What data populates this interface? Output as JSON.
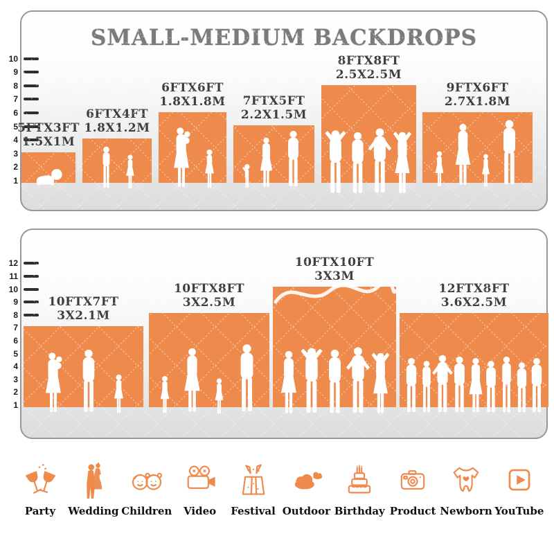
{
  "accent_color": "#ED8A4C",
  "silhouette_color": "#FFFFFF",
  "title": "SMALL-MEDIUM BACKDROPS",
  "panels": [
    {
      "id": "top",
      "ruler_units": 10,
      "backdrops": [
        {
          "label_ft": "5FTX3FT",
          "label_m": "1.5X1M",
          "width_ft": 5,
          "height_ft": 3,
          "figures": [
            "baby"
          ]
        },
        {
          "label_ft": "6FTX4FT",
          "label_m": "1.8X1.2M",
          "width_ft": 6,
          "height_ft": 4,
          "figures": [
            "boy",
            "girl"
          ]
        },
        {
          "label_ft": "6FTX6FT",
          "label_m": "1.8X1.8M",
          "width_ft": 6,
          "height_ft": 6,
          "figures": [
            "woman_baby",
            "girl"
          ]
        },
        {
          "label_ft": "7FTX5FT",
          "label_m": "2.2X1.5M",
          "width_ft": 7,
          "height_ft": 5,
          "figures": [
            "toddler",
            "woman",
            "man"
          ]
        },
        {
          "label_ft": "8FTX8FT",
          "label_m": "2.5X2.5M",
          "width_ft": 8,
          "height_ft": 8,
          "figures": [
            "man_up",
            "man",
            "man_hips",
            "woman_up"
          ]
        },
        {
          "label_ft": "9FTX6FT",
          "label_m": "2.7X1.8M",
          "width_ft": 9,
          "height_ft": 6,
          "figures": [
            "girl",
            "woman",
            "girl",
            "man"
          ]
        }
      ]
    },
    {
      "id": "bottom",
      "ruler_units": 12,
      "backdrops": [
        {
          "label_ft": "10FTX7FT",
          "label_m": "3X2.1M",
          "width_ft": 10,
          "height_ft": 7,
          "figures": [
            "woman_baby",
            "man",
            "girl"
          ]
        },
        {
          "label_ft": "10FTX8FT",
          "label_m": "3X2.5M",
          "width_ft": 10,
          "height_ft": 8,
          "figures": [
            "girl",
            "woman",
            "girl",
            "man"
          ]
        },
        {
          "label_ft": "10FTX10FT",
          "label_m": "3X3M",
          "width_ft": 10,
          "height_ft": 10,
          "figures": [
            "woman",
            "man_up",
            "man",
            "man_hips",
            "woman_up"
          ]
        },
        {
          "label_ft": "12FTX8FT",
          "label_m": "3.6X2.5M",
          "width_ft": 12,
          "height_ft": 8,
          "figures": [
            "man",
            "woman_pants",
            "man_hips",
            "man",
            "woman",
            "man",
            "woman_pants",
            "man",
            "man"
          ]
        }
      ]
    }
  ],
  "categories": [
    {
      "label": "Party",
      "icon": "party-icon"
    },
    {
      "label": "Wedding",
      "icon": "wedding-icon"
    },
    {
      "label": "Children",
      "icon": "children-icon"
    },
    {
      "label": "Video",
      "icon": "video-icon"
    },
    {
      "label": "Festival",
      "icon": "festival-icon"
    },
    {
      "label": "Outdoor",
      "icon": "outdoor-icon"
    },
    {
      "label": "Birthday",
      "icon": "birthday-icon"
    },
    {
      "label": "Product",
      "icon": "product-icon"
    },
    {
      "label": "Newborn",
      "icon": "newborn-icon"
    },
    {
      "label": "YouTube",
      "icon": "youtube-icon"
    }
  ]
}
